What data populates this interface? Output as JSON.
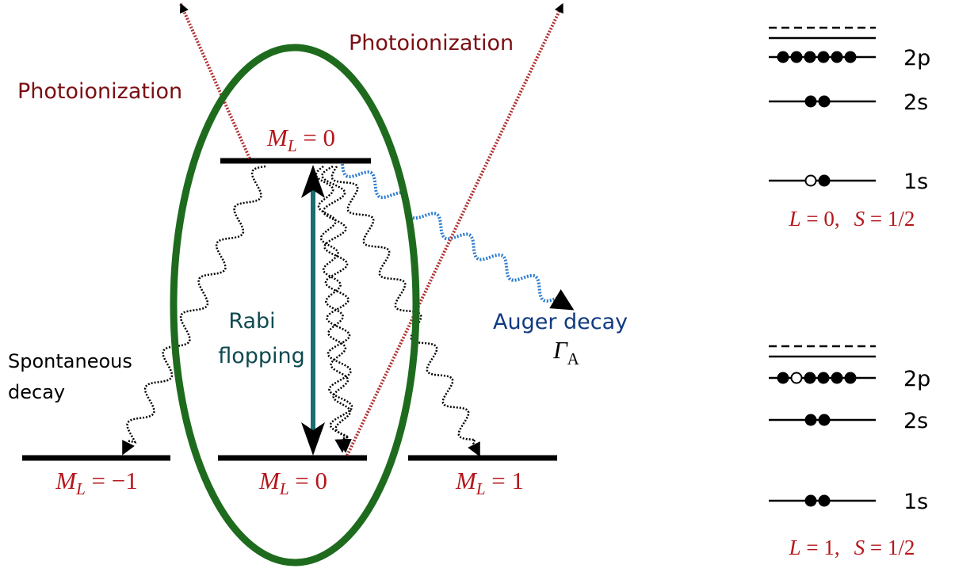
{
  "labels": {
    "photoionization_left": "Photoionization",
    "photoionization_right": "Photoionization",
    "rabi": [
      "Rabi",
      "flopping"
    ],
    "auger": "Auger decay",
    "gamma": {
      "symbol": "Γ",
      "subscript": "A"
    },
    "spontaneous": [
      "Spontaneous",
      "decay"
    ]
  },
  "levels": {
    "top": {
      "symbol": "M",
      "subscript": "L",
      "rhs": " = 0"
    },
    "bottom_left": {
      "symbol": "M",
      "subscript": "L",
      "rhs": " = −1"
    },
    "bottom_center": {
      "symbol": "M",
      "subscript": "L",
      "rhs": " = 0"
    },
    "bottom_right": {
      "symbol": "M",
      "subscript": "L",
      "rhs": " = 1"
    }
  },
  "configurations": [
    {
      "orbitals": [
        "2p",
        "2s",
        "1s"
      ],
      "term": {
        "L": "L",
        "L_value": " = 0,",
        "S": "S",
        "S_value": " = 1/2"
      }
    },
    {
      "orbitals": [
        "2p",
        "2s",
        "1s"
      ],
      "term": {
        "L": "L",
        "L_value": " = 1,",
        "S": "S",
        "S_value": " = 1/2"
      }
    }
  ]
}
